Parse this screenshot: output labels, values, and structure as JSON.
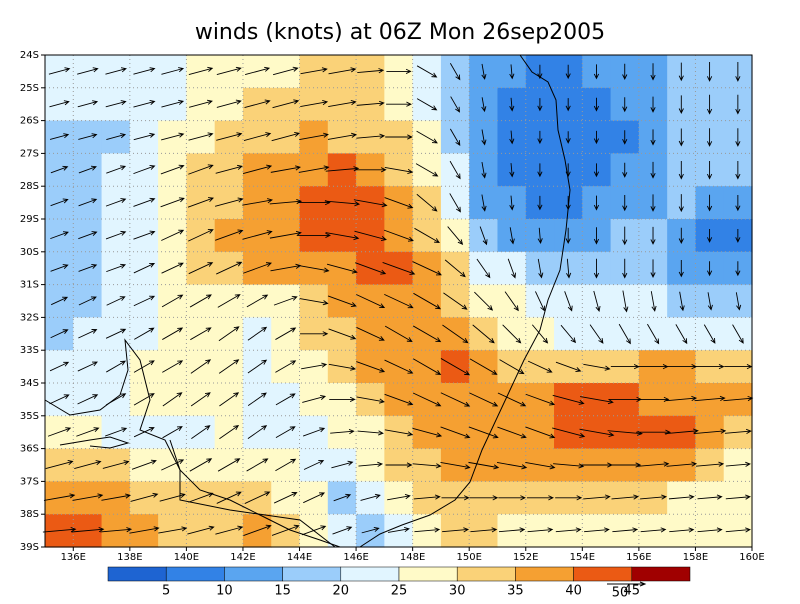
{
  "chart_data": {
    "type": "vector-map",
    "title": "winds (knots) at 06Z Mon 26sep2005",
    "xlim": [
      135,
      160
    ],
    "ylim": [
      -39,
      -24
    ],
    "xticks": [
      {
        "value": 136,
        "label": "136E"
      },
      {
        "value": 138,
        "label": "138E"
      },
      {
        "value": 140,
        "label": "140E"
      },
      {
        "value": 142,
        "label": "142E"
      },
      {
        "value": 144,
        "label": "144E"
      },
      {
        "value": 146,
        "label": "146E"
      },
      {
        "value": 148,
        "label": "148E"
      },
      {
        "value": 150,
        "label": "150E"
      },
      {
        "value": 152,
        "label": "152E"
      },
      {
        "value": 154,
        "label": "154E"
      },
      {
        "value": 156,
        "label": "156E"
      },
      {
        "value": 158,
        "label": "158E"
      },
      {
        "value": 160,
        "label": "160E"
      }
    ],
    "yticks": [
      {
        "value": -24,
        "label": "24S"
      },
      {
        "value": -25,
        "label": "25S"
      },
      {
        "value": -26,
        "label": "26S"
      },
      {
        "value": -27,
        "label": "27S"
      },
      {
        "value": -28,
        "label": "28S"
      },
      {
        "value": -29,
        "label": "29S"
      },
      {
        "value": -30,
        "label": "30S"
      },
      {
        "value": -31,
        "label": "31S"
      },
      {
        "value": -32,
        "label": "32S"
      },
      {
        "value": -33,
        "label": "33S"
      },
      {
        "value": -34,
        "label": "34S"
      },
      {
        "value": -35,
        "label": "35S"
      },
      {
        "value": -36,
        "label": "36S"
      },
      {
        "value": -37,
        "label": "37S"
      },
      {
        "value": -38,
        "label": "38S"
      },
      {
        "value": -39,
        "label": "39S"
      }
    ],
    "grid": true,
    "speed": [
      [
        22,
        22,
        22,
        23,
        24,
        27,
        28,
        28,
        29,
        31,
        32,
        30,
        27,
        24,
        18,
        12,
        10,
        9,
        9,
        10,
        12,
        14,
        16,
        18,
        18
      ],
      [
        20,
        20,
        21,
        23,
        24,
        26,
        28,
        30,
        31,
        32,
        33,
        32,
        28,
        24,
        16,
        10,
        8,
        7,
        7,
        8,
        10,
        12,
        16,
        18,
        18
      ],
      [
        18,
        18,
        19,
        22,
        25,
        28,
        30,
        32,
        34,
        35,
        34,
        33,
        31,
        26,
        18,
        12,
        8,
        7,
        6,
        7,
        9,
        12,
        15,
        16,
        16
      ],
      [
        16,
        17,
        20,
        24,
        27,
        30,
        32,
        35,
        36,
        37,
        41,
        38,
        33,
        28,
        20,
        13,
        9,
        8,
        8,
        8,
        10,
        13,
        16,
        16,
        16
      ],
      [
        17,
        18,
        21,
        24,
        28,
        31,
        34,
        37,
        39,
        40,
        44,
        42,
        36,
        30,
        22,
        14,
        10,
        9,
        9,
        10,
        12,
        14,
        15,
        13,
        12
      ],
      [
        18,
        19,
        21,
        24,
        27,
        32,
        35,
        37,
        39,
        41,
        42,
        41,
        38,
        34,
        25,
        18,
        14,
        12,
        12,
        14,
        16,
        15,
        12,
        8,
        8
      ],
      [
        17,
        18,
        20,
        24,
        26,
        30,
        33,
        36,
        37,
        37,
        38,
        40,
        43,
        39,
        30,
        24,
        20,
        18,
        18,
        18,
        18,
        16,
        14,
        10,
        10
      ],
      [
        16,
        18,
        20,
        24,
        26,
        27,
        29,
        26,
        27,
        34,
        36,
        38,
        39,
        38,
        34,
        29,
        25,
        22,
        21,
        21,
        22,
        20,
        18,
        16,
        16
      ],
      [
        18,
        20,
        22,
        24,
        25,
        26,
        27,
        24,
        25,
        32,
        34,
        37,
        38,
        39,
        38,
        33,
        29,
        26,
        24,
        24,
        24,
        24,
        23,
        22,
        22
      ],
      [
        20,
        22,
        23,
        25,
        25,
        26,
        26,
        24,
        25,
        29,
        31,
        36,
        38,
        39,
        41,
        38,
        33,
        30,
        30,
        31,
        33,
        35,
        36,
        33,
        32
      ],
      [
        22,
        23,
        24,
        25,
        25,
        25,
        25,
        23,
        23,
        26,
        29,
        33,
        36,
        37,
        39,
        38,
        37,
        37,
        40,
        42,
        41,
        38,
        36,
        37,
        35
      ],
      [
        26,
        26,
        24,
        23,
        24,
        24,
        25,
        24,
        23,
        24,
        26,
        29,
        33,
        36,
        38,
        38,
        37,
        38,
        42,
        44,
        44,
        43,
        42,
        39,
        30
      ],
      [
        33,
        32,
        31,
        29,
        27,
        28,
        28,
        27,
        25,
        22,
        23,
        26,
        30,
        33,
        36,
        37,
        36,
        36,
        37,
        38,
        38,
        38,
        36,
        32,
        27
      ],
      [
        38,
        37,
        35,
        33,
        30,
        30,
        31,
        32,
        28,
        25,
        16,
        20,
        25,
        30,
        32,
        33,
        31,
        30,
        30,
        31,
        31,
        30,
        28,
        27,
        27
      ],
      [
        41,
        40,
        38,
        36,
        34,
        32,
        33,
        35,
        34,
        28,
        20,
        16,
        22,
        28,
        30,
        30,
        29,
        28,
        28,
        28,
        28,
        28,
        27,
        27,
        27
      ]
    ],
    "direction": [
      [
        15,
        15,
        15,
        15,
        15,
        15,
        15,
        15,
        15,
        10,
        10,
        5,
        0,
        -30,
        -60,
        -80,
        -85,
        -90,
        -90,
        -90,
        -90,
        -90,
        -90,
        -90,
        -90
      ],
      [
        15,
        15,
        15,
        15,
        15,
        15,
        15,
        15,
        15,
        10,
        10,
        5,
        0,
        -30,
        -60,
        -80,
        -85,
        -90,
        -90,
        -90,
        -90,
        -90,
        -90,
        -90,
        -90
      ],
      [
        15,
        15,
        15,
        15,
        15,
        15,
        15,
        15,
        15,
        10,
        10,
        5,
        0,
        -30,
        -60,
        -80,
        -85,
        -90,
        -90,
        -90,
        -90,
        -90,
        -90,
        -90,
        -90
      ],
      [
        20,
        20,
        20,
        20,
        20,
        20,
        15,
        15,
        10,
        10,
        5,
        0,
        -10,
        -30,
        -60,
        -80,
        -85,
        -90,
        -90,
        -90,
        -90,
        -90,
        -90,
        -90,
        -90
      ],
      [
        20,
        20,
        20,
        20,
        20,
        20,
        15,
        10,
        5,
        0,
        -5,
        -10,
        -20,
        -40,
        -60,
        -80,
        -85,
        -90,
        -90,
        -90,
        -90,
        -90,
        -90,
        -90,
        -90
      ],
      [
        20,
        20,
        20,
        20,
        25,
        25,
        20,
        15,
        10,
        0,
        -10,
        -15,
        -20,
        -30,
        -50,
        -70,
        -80,
        -85,
        -90,
        -90,
        -90,
        -90,
        -90,
        -90,
        -90
      ],
      [
        20,
        20,
        20,
        25,
        25,
        25,
        25,
        20,
        10,
        -10,
        -15,
        -20,
        -20,
        -25,
        -40,
        -55,
        -70,
        -80,
        -85,
        -90,
        -90,
        -90,
        -90,
        -90,
        -90
      ],
      [
        25,
        25,
        25,
        25,
        30,
        30,
        30,
        30,
        20,
        -10,
        -20,
        -25,
        -25,
        -30,
        -35,
        -45,
        -55,
        -65,
        -70,
        -75,
        -80,
        -80,
        -80,
        -80,
        -80
      ],
      [
        25,
        25,
        25,
        30,
        30,
        30,
        35,
        35,
        30,
        0,
        -20,
        -25,
        -30,
        -30,
        -35,
        -40,
        -45,
        -50,
        -50,
        -55,
        -60,
        -60,
        -60,
        -60,
        -60
      ],
      [
        25,
        25,
        30,
        30,
        30,
        35,
        35,
        35,
        30,
        10,
        -10,
        -20,
        -25,
        -30,
        -30,
        -30,
        -30,
        -25,
        -20,
        -10,
        0,
        0,
        0,
        0,
        0
      ],
      [
        25,
        25,
        30,
        30,
        35,
        35,
        35,
        35,
        30,
        15,
        0,
        -10,
        -20,
        -25,
        -25,
        -25,
        -25,
        -20,
        -15,
        -10,
        0,
        0,
        5,
        5,
        5
      ],
      [
        20,
        20,
        20,
        25,
        30,
        35,
        35,
        35,
        30,
        20,
        5,
        -5,
        -10,
        -15,
        -20,
        -20,
        -20,
        -20,
        -15,
        -10,
        -5,
        0,
        5,
        5,
        5
      ],
      [
        15,
        15,
        15,
        20,
        25,
        30,
        30,
        30,
        30,
        25,
        15,
        5,
        0,
        -5,
        -10,
        -10,
        -10,
        -10,
        -5,
        0,
        0,
        5,
        5,
        5,
        5
      ],
      [
        10,
        10,
        10,
        15,
        15,
        20,
        25,
        25,
        25,
        25,
        20,
        15,
        10,
        5,
        0,
        0,
        0,
        0,
        0,
        5,
        5,
        5,
        5,
        5,
        5
      ],
      [
        5,
        5,
        5,
        10,
        10,
        15,
        15,
        20,
        20,
        20,
        20,
        15,
        10,
        5,
        5,
        5,
        5,
        5,
        5,
        5,
        5,
        5,
        5,
        5,
        5
      ]
    ],
    "colorbar": {
      "levels": [
        5,
        10,
        15,
        20,
        25,
        30,
        35,
        40,
        45
      ],
      "colors": [
        "#1e64d2",
        "#3282e6",
        "#5aa5f0",
        "#9bcdfa",
        "#e1f5ff",
        "#fffac8",
        "#fad278",
        "#f5a032",
        "#eb5a14",
        "#a00000"
      ]
    },
    "reference_vector": 50
  }
}
